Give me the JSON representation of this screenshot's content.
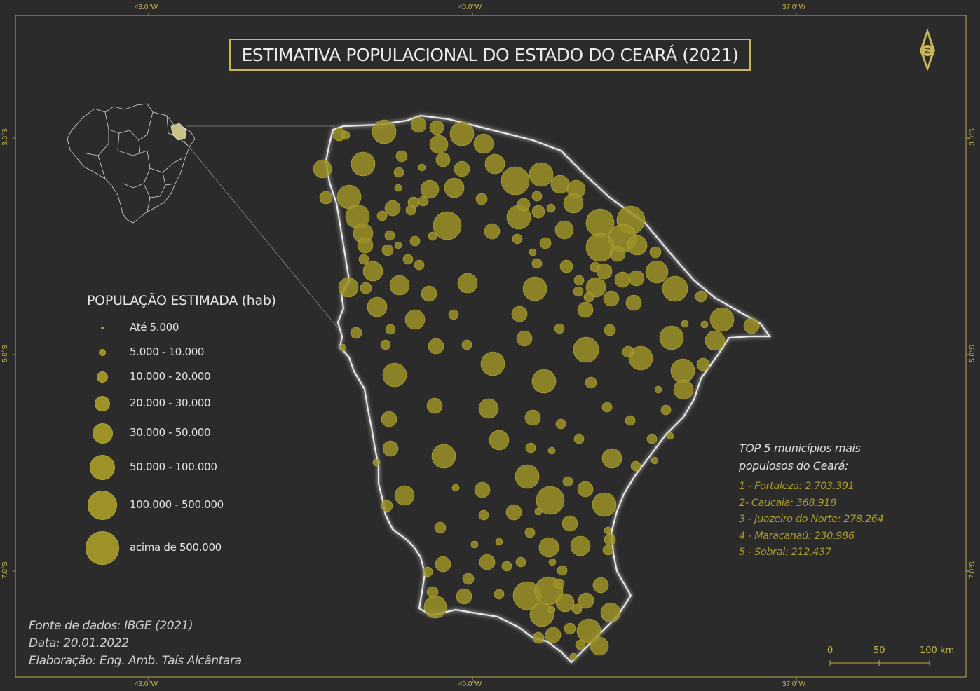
{
  "map": {
    "title": "ESTIMATIVA POPULACIONAL DO ESTADO DO CEARÁ (2021)",
    "colors": {
      "background": "#2b2b2b",
      "frame": "#b8aa48",
      "bubble": "#9c9227",
      "outline": "#eeeeee",
      "accent_text": "#a89c2a"
    },
    "graticule": {
      "lon_labels": [
        "43.0°W",
        "40.0°W",
        "37.0°W"
      ],
      "lat_labels": [
        "3.0°S",
        "5.0°S",
        "7.0°S"
      ]
    },
    "north_arrow_letter": "N",
    "legend": {
      "title": "POPULAÇÃO ESTIMADA (hab)",
      "classes": [
        {
          "label": "Até 5.000",
          "radius": 2
        },
        {
          "label": "5.000 - 10.000",
          "radius": 5
        },
        {
          "label": "10.000 - 20.000",
          "radius": 8
        },
        {
          "label": "20.000 - 30.000",
          "radius": 11
        },
        {
          "label": "30.000 - 50.000",
          "radius": 14.5
        },
        {
          "label": "50.000 - 100.000",
          "radius": 18
        },
        {
          "label": "100.000 - 500.000",
          "radius": 21
        },
        {
          "label": "acima de 500.000",
          "radius": 24
        }
      ]
    },
    "top5": {
      "heading_line1": "TOP 5 municípios mais",
      "heading_line2": "populosos do Ceará:",
      "items": [
        "1 - Fortaleza:  2.703.391",
        "2- Caucaia: 368.918",
        "3 - Juazeiro do Norte: 278.264",
        "4 - Maracanaú: 230.986",
        "5 - Sobral: 212.437"
      ]
    },
    "credits": {
      "source": "Fonte de dados: IBGE (2021)",
      "date": "Data: 20.01.2022",
      "author": "Elaboração: Eng. Amb. Taís Alcântara"
    },
    "scale_bar": {
      "labels": [
        "0",
        "50",
        "100 km"
      ]
    }
  }
}
